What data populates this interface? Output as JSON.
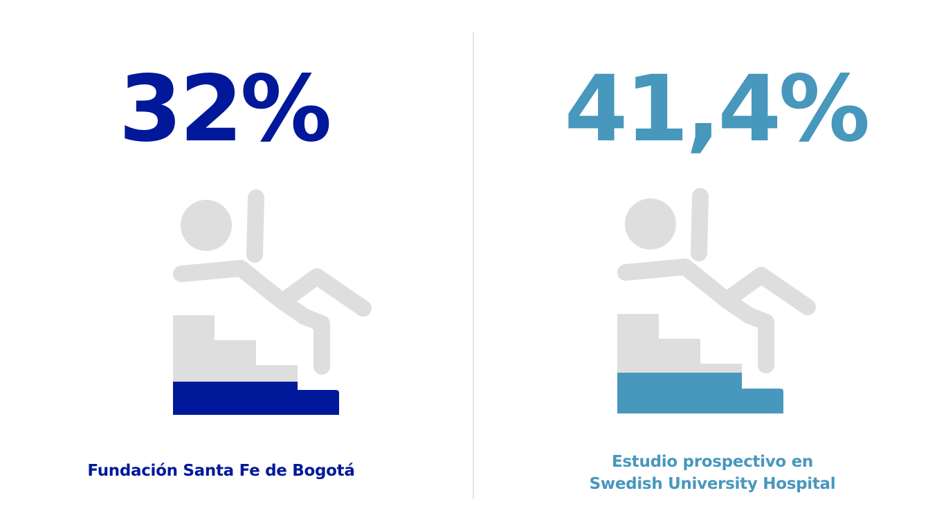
{
  "colors": {
    "left_accent": "#001899",
    "right_accent": "#4897bd",
    "figure_gray": "#dedede",
    "divider": "#e6e6e6"
  },
  "left": {
    "stat": "32%",
    "value_percent": 32,
    "caption_lines": [
      "Fundación Santa Fe de Bogotá"
    ],
    "icon": "person-falling-down-stairs-icon"
  },
  "right": {
    "stat": "41,4%",
    "value_percent": 41.4,
    "caption_lines": [
      "Estudio prospectivo en",
      "Swedish University Hospital"
    ],
    "icon": "person-falling-down-stairs-icon"
  }
}
